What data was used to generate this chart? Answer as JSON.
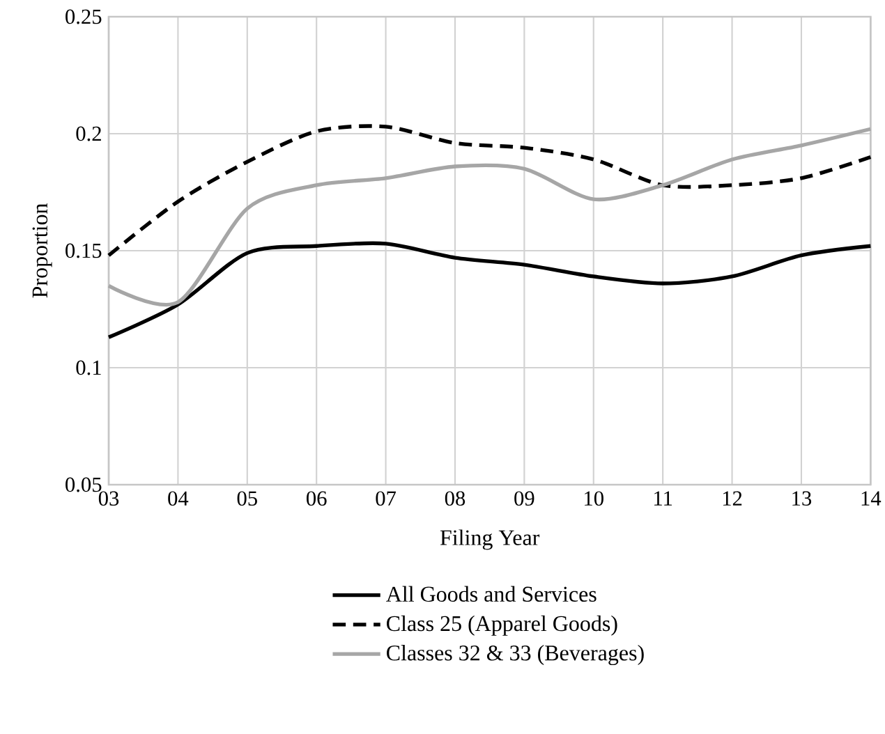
{
  "chart_data": {
    "type": "line",
    "xlabel": "Filing Year",
    "ylabel": "Proportion",
    "categories": [
      "03",
      "04",
      "05",
      "06",
      "07",
      "08",
      "09",
      "10",
      "11",
      "12",
      "13",
      "14"
    ],
    "series": [
      {
        "name": "All Goods and Services",
        "color": "#000000",
        "line_style": "solid",
        "values": [
          0.113,
          0.127,
          0.149,
          0.152,
          0.153,
          0.147,
          0.144,
          0.139,
          0.136,
          0.139,
          0.148,
          0.152
        ]
      },
      {
        "name": "Class 25 (Apparel Goods)",
        "color": "#000000",
        "line_style": "dashed",
        "values": [
          0.148,
          0.171,
          0.188,
          0.201,
          0.203,
          0.196,
          0.194,
          0.189,
          0.178,
          0.178,
          0.181,
          0.19
        ]
      },
      {
        "name": "Classes 32 & 33 (Beverages)",
        "color": "#a6a6a6",
        "line_style": "solid",
        "values": [
          0.135,
          0.128,
          0.168,
          0.178,
          0.181,
          0.186,
          0.185,
          0.172,
          0.178,
          0.189,
          0.195,
          0.202
        ]
      }
    ],
    "ylim": [
      0.05,
      0.25
    ],
    "yticks": [
      0.05,
      0.1,
      0.15,
      0.2,
      0.25
    ],
    "grid": true,
    "legend": "bottom",
    "marker": "none"
  }
}
